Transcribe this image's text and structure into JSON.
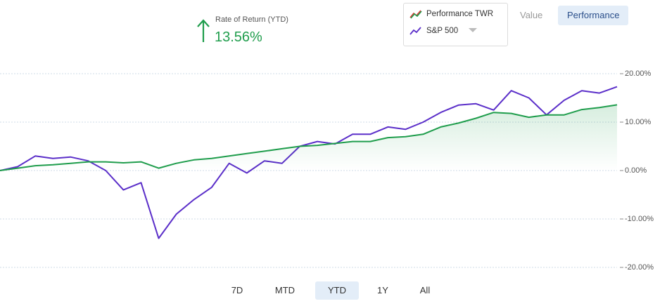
{
  "header": {
    "label": "Rate of Return (YTD)",
    "value": "13.56%"
  },
  "view_toggle": [
    "Value",
    "Performance"
  ],
  "ranges": [
    "7D",
    "MTD",
    "YTD",
    "1Y",
    "All"
  ],
  "chart_data": {
    "type": "line",
    "series": [
      {
        "name": "Performance TWR",
        "color": "#1f9d4c",
        "values": [
          0,
          0.5,
          1,
          1.2,
          1.5,
          1.8,
          1.8,
          1.6,
          1.8,
          0.5,
          1.5,
          2.2,
          2.5,
          3,
          3.5,
          4,
          4.5,
          5,
          5.2,
          5.6,
          6,
          6,
          6.8,
          7,
          7.5,
          9,
          9.8,
          10.8,
          12,
          11.8,
          11,
          11.5,
          11.5,
          12.6,
          13,
          13.56
        ]
      },
      {
        "name": "S&P 500",
        "color": "#5b2fc9",
        "values": [
          0,
          0.8,
          3,
          2.5,
          2.8,
          2,
          0,
          -4,
          -2.5,
          -14,
          -9,
          -6,
          -3.5,
          1.5,
          -0.5,
          2,
          1.5,
          5,
          6,
          5.5,
          7.5,
          7.5,
          9,
          8.5,
          10,
          12,
          13.5,
          13.8,
          12.5,
          16.5,
          15,
          11.5,
          14.5,
          16.5,
          16,
          17.3
        ]
      }
    ],
    "ylim": [
      -20,
      20
    ],
    "yticks": [
      {
        "value": 20,
        "label": "20.00%"
      },
      {
        "value": 10,
        "label": "10.00%"
      },
      {
        "value": 0,
        "label": "0.00%"
      },
      {
        "value": -10,
        "label": "-10.00%"
      },
      {
        "value": -20,
        "label": "-20.00%"
      }
    ],
    "grid": true
  }
}
